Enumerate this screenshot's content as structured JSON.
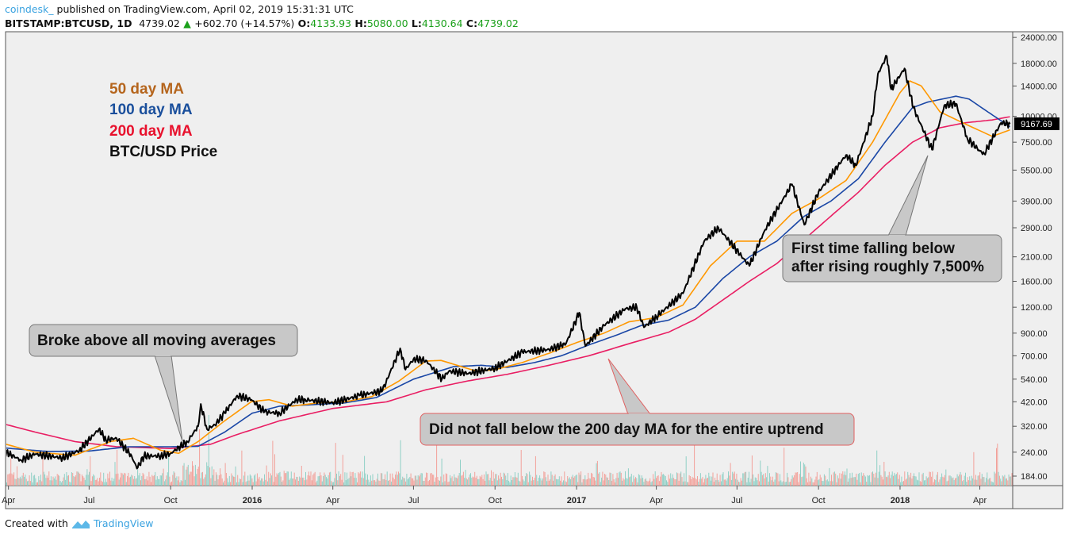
{
  "header": {
    "user": "coindesk_",
    "published": "published on TradingView.com, April 02, 2019 15:31:31 UTC",
    "symbol": "BITSTAMP:BTCUSD, 1D",
    "last": "4739.02",
    "change": "+602.70 (+14.57%)",
    "o_label": "O:",
    "o": "4133.93",
    "h_label": "H:",
    "h": "5080.00",
    "l_label": "L:",
    "l": "4130.64",
    "c_label": "C:",
    "c": "4739.02"
  },
  "footer": {
    "created_with": "Created with",
    "brand": "TradingView"
  },
  "legend": [
    {
      "label": "50 day MA",
      "color": "#b5651d"
    },
    {
      "label": "100 day MA",
      "color": "#1a4f9c"
    },
    {
      "label": "200 day MA",
      "color": "#e8112d"
    },
    {
      "label": "BTC/USD Price",
      "color": "#111111"
    }
  ],
  "annotations": [
    "Broke above all moving averages",
    "Did not fall below the 200 day MA for the entire uptrend",
    "First time falling below",
    "after rising roughly 7,500%"
  ],
  "price_tag": "9167.69",
  "chart_data": {
    "type": "line",
    "yscale": "log",
    "ylim": [
      170,
      26000
    ],
    "xlim": [
      "2015-03-25",
      "2018-05-08"
    ],
    "grid": false,
    "legend_position": "top-left",
    "y_ticks": [
      "24000.00",
      "18000.00",
      "14000.00",
      "10000.00",
      "7500.00",
      "5500.00",
      "3900.00",
      "2900.00",
      "2100.00",
      "1600.00",
      "1200.00",
      "900.00",
      "700.00",
      "540.00",
      "420.00",
      "320.00",
      "240.00",
      "184.00"
    ],
    "x_ticks": [
      {
        "label": "Apr",
        "date": "2015-04-01",
        "bold": false
      },
      {
        "label": "Jul",
        "date": "2015-07-01",
        "bold": false
      },
      {
        "label": "Oct",
        "date": "2015-10-01",
        "bold": false
      },
      {
        "label": "2016",
        "date": "2016-01-01",
        "bold": true
      },
      {
        "label": "Apr",
        "date": "2016-04-01",
        "bold": false
      },
      {
        "label": "Jul",
        "date": "2016-07-01",
        "bold": false
      },
      {
        "label": "Oct",
        "date": "2016-10-01",
        "bold": false
      },
      {
        "label": "2017",
        "date": "2017-01-01",
        "bold": true
      },
      {
        "label": "Apr",
        "date": "2017-04-01",
        "bold": false
      },
      {
        "label": "Jul",
        "date": "2017-07-01",
        "bold": false
      },
      {
        "label": "Oct",
        "date": "2017-10-01",
        "bold": false
      },
      {
        "label": "2018",
        "date": "2018-01-01",
        "bold": true
      },
      {
        "label": "Apr",
        "date": "2018-04-01",
        "bold": false
      }
    ],
    "series": [
      {
        "name": "200 day MA",
        "color": "#e91e63",
        "points": [
          [
            "2015-03-25",
            330
          ],
          [
            "2015-05-01",
            300
          ],
          [
            "2015-06-15",
            270
          ],
          [
            "2015-08-01",
            255
          ],
          [
            "2015-10-01",
            250
          ],
          [
            "2015-11-15",
            262
          ],
          [
            "2015-12-15",
            292
          ],
          [
            "2016-02-01",
            340
          ],
          [
            "2016-04-01",
            390
          ],
          [
            "2016-06-01",
            420
          ],
          [
            "2016-07-15",
            480
          ],
          [
            "2016-09-01",
            530
          ],
          [
            "2016-10-15",
            570
          ],
          [
            "2016-12-01",
            630
          ],
          [
            "2017-01-15",
            700
          ],
          [
            "2017-03-01",
            800
          ],
          [
            "2017-04-15",
            910
          ],
          [
            "2017-05-15",
            1050
          ],
          [
            "2017-06-15",
            1300
          ],
          [
            "2017-07-15",
            1600
          ],
          [
            "2017-08-15",
            1950
          ],
          [
            "2017-09-15",
            2550
          ],
          [
            "2017-10-15",
            3300
          ],
          [
            "2017-11-15",
            4300
          ],
          [
            "2017-12-15",
            5800
          ],
          [
            "2018-01-15",
            7500
          ],
          [
            "2018-02-15",
            8800
          ],
          [
            "2018-03-15",
            9300
          ],
          [
            "2018-04-15",
            9600
          ],
          [
            "2018-05-05",
            9950
          ]
        ]
      },
      {
        "name": "100 day MA",
        "color": "#1a47a6",
        "points": [
          [
            "2015-03-25",
            252
          ],
          [
            "2015-05-15",
            242
          ],
          [
            "2015-07-01",
            243
          ],
          [
            "2015-08-15",
            255
          ],
          [
            "2015-10-01",
            255
          ],
          [
            "2015-11-01",
            256
          ],
          [
            "2015-12-01",
            300
          ],
          [
            "2016-01-01",
            370
          ],
          [
            "2016-02-01",
            400
          ],
          [
            "2016-03-01",
            405
          ],
          [
            "2016-04-15",
            415
          ],
          [
            "2016-05-20",
            440
          ],
          [
            "2016-07-01",
            540
          ],
          [
            "2016-08-15",
            620
          ],
          [
            "2016-09-15",
            630
          ],
          [
            "2016-10-15",
            615
          ],
          [
            "2016-11-15",
            650
          ],
          [
            "2016-12-15",
            700
          ],
          [
            "2017-01-15",
            790
          ],
          [
            "2017-02-15",
            880
          ],
          [
            "2017-03-15",
            980
          ],
          [
            "2017-04-15",
            1040
          ],
          [
            "2017-05-15",
            1200
          ],
          [
            "2017-06-15",
            1650
          ],
          [
            "2017-07-15",
            2100
          ],
          [
            "2017-08-15",
            2500
          ],
          [
            "2017-09-15",
            3300
          ],
          [
            "2017-10-15",
            3900
          ],
          [
            "2017-11-15",
            5000
          ],
          [
            "2017-12-15",
            7500
          ],
          [
            "2018-01-15",
            11000
          ],
          [
            "2018-02-01",
            11700
          ],
          [
            "2018-03-05",
            12500
          ],
          [
            "2018-03-20",
            12100
          ],
          [
            "2018-04-10",
            10500
          ],
          [
            "2018-05-05",
            8900
          ]
        ]
      },
      {
        "name": "50 day MA",
        "color": "#ff9800",
        "points": [
          [
            "2015-03-25",
            265
          ],
          [
            "2015-05-01",
            240
          ],
          [
            "2015-06-15",
            232
          ],
          [
            "2015-07-25",
            270
          ],
          [
            "2015-08-20",
            280
          ],
          [
            "2015-09-20",
            245
          ],
          [
            "2015-10-10",
            237
          ],
          [
            "2015-11-01",
            270
          ],
          [
            "2015-12-01",
            340
          ],
          [
            "2015-12-31",
            420
          ],
          [
            "2016-01-20",
            430
          ],
          [
            "2016-02-15",
            400
          ],
          [
            "2016-03-15",
            415
          ],
          [
            "2016-04-15",
            420
          ],
          [
            "2016-05-15",
            445
          ],
          [
            "2016-06-15",
            530
          ],
          [
            "2016-07-15",
            660
          ],
          [
            "2016-08-01",
            665
          ],
          [
            "2016-09-10",
            590
          ],
          [
            "2016-10-01",
            600
          ],
          [
            "2016-11-01",
            650
          ],
          [
            "2016-12-01",
            720
          ],
          [
            "2017-01-01",
            810
          ],
          [
            "2017-02-01",
            900
          ],
          [
            "2017-03-01",
            1020
          ],
          [
            "2017-04-01",
            1070
          ],
          [
            "2017-05-01",
            1230
          ],
          [
            "2017-06-01",
            1900
          ],
          [
            "2017-07-01",
            2500
          ],
          [
            "2017-08-01",
            2500
          ],
          [
            "2017-09-01",
            3400
          ],
          [
            "2017-10-01",
            4000
          ],
          [
            "2017-11-01",
            4900
          ],
          [
            "2017-12-01",
            7500
          ],
          [
            "2018-01-01",
            13000
          ],
          [
            "2018-01-12",
            14800
          ],
          [
            "2018-01-25",
            14000
          ],
          [
            "2018-02-15",
            10500
          ],
          [
            "2018-03-15",
            9200
          ],
          [
            "2018-04-15",
            8000
          ],
          [
            "2018-05-05",
            8600
          ]
        ]
      },
      {
        "name": "BTC/USD Price",
        "color": "#000000",
        "points": [
          [
            "2015-03-25",
            245
          ],
          [
            "2015-04-15",
            220
          ],
          [
            "2015-05-01",
            235
          ],
          [
            "2015-06-01",
            225
          ],
          [
            "2015-06-20",
            245
          ],
          [
            "2015-07-12",
            310
          ],
          [
            "2015-07-20",
            275
          ],
          [
            "2015-08-01",
            280
          ],
          [
            "2015-08-18",
            230
          ],
          [
            "2015-08-24",
            200
          ],
          [
            "2015-09-01",
            230
          ],
          [
            "2015-09-20",
            230
          ],
          [
            "2015-10-01",
            237
          ],
          [
            "2015-10-20",
            270
          ],
          [
            "2015-11-01",
            320
          ],
          [
            "2015-11-04",
            410
          ],
          [
            "2015-11-11",
            310
          ],
          [
            "2015-11-20",
            325
          ],
          [
            "2015-12-01",
            370
          ],
          [
            "2015-12-15",
            450
          ],
          [
            "2015-12-31",
            430
          ],
          [
            "2016-01-15",
            375
          ],
          [
            "2016-02-01",
            370
          ],
          [
            "2016-02-20",
            430
          ],
          [
            "2016-03-01",
            430
          ],
          [
            "2016-04-01",
            415
          ],
          [
            "2016-05-01",
            450
          ],
          [
            "2016-05-27",
            475
          ],
          [
            "2016-06-16",
            760
          ],
          [
            "2016-06-22",
            600
          ],
          [
            "2016-07-01",
            675
          ],
          [
            "2016-07-15",
            665
          ],
          [
            "2016-08-02",
            540
          ],
          [
            "2016-08-10",
            590
          ],
          [
            "2016-09-01",
            575
          ],
          [
            "2016-10-01",
            610
          ],
          [
            "2016-11-01",
            730
          ],
          [
            "2016-12-01",
            750
          ],
          [
            "2016-12-20",
            800
          ],
          [
            "2017-01-04",
            1130
          ],
          [
            "2017-01-11",
            780
          ],
          [
            "2017-02-01",
            980
          ],
          [
            "2017-02-25",
            1180
          ],
          [
            "2017-03-10",
            1200
          ],
          [
            "2017-03-18",
            960
          ],
          [
            "2017-04-01",
            1080
          ],
          [
            "2017-05-01",
            1400
          ],
          [
            "2017-05-25",
            2500
          ],
          [
            "2017-06-10",
            2900
          ],
          [
            "2017-07-15",
            1900
          ],
          [
            "2017-08-01",
            2800
          ],
          [
            "2017-09-01",
            4700
          ],
          [
            "2017-09-15",
            3000
          ],
          [
            "2017-10-01",
            4300
          ],
          [
            "2017-11-01",
            6500
          ],
          [
            "2017-11-12",
            5800
          ],
          [
            "2017-12-01",
            10000
          ],
          [
            "2017-12-07",
            16000
          ],
          [
            "2017-12-17",
            19500
          ],
          [
            "2017-12-22",
            13500
          ],
          [
            "2018-01-06",
            17000
          ],
          [
            "2018-01-16",
            11000
          ],
          [
            "2018-02-06",
            6900
          ],
          [
            "2018-02-20",
            11300
          ],
          [
            "2018-03-05",
            11500
          ],
          [
            "2018-03-18",
            7800
          ],
          [
            "2018-04-01",
            6800
          ],
          [
            "2018-04-06",
            6600
          ],
          [
            "2018-04-25",
            9300
          ],
          [
            "2018-05-05",
            9168
          ]
        ]
      }
    ]
  }
}
